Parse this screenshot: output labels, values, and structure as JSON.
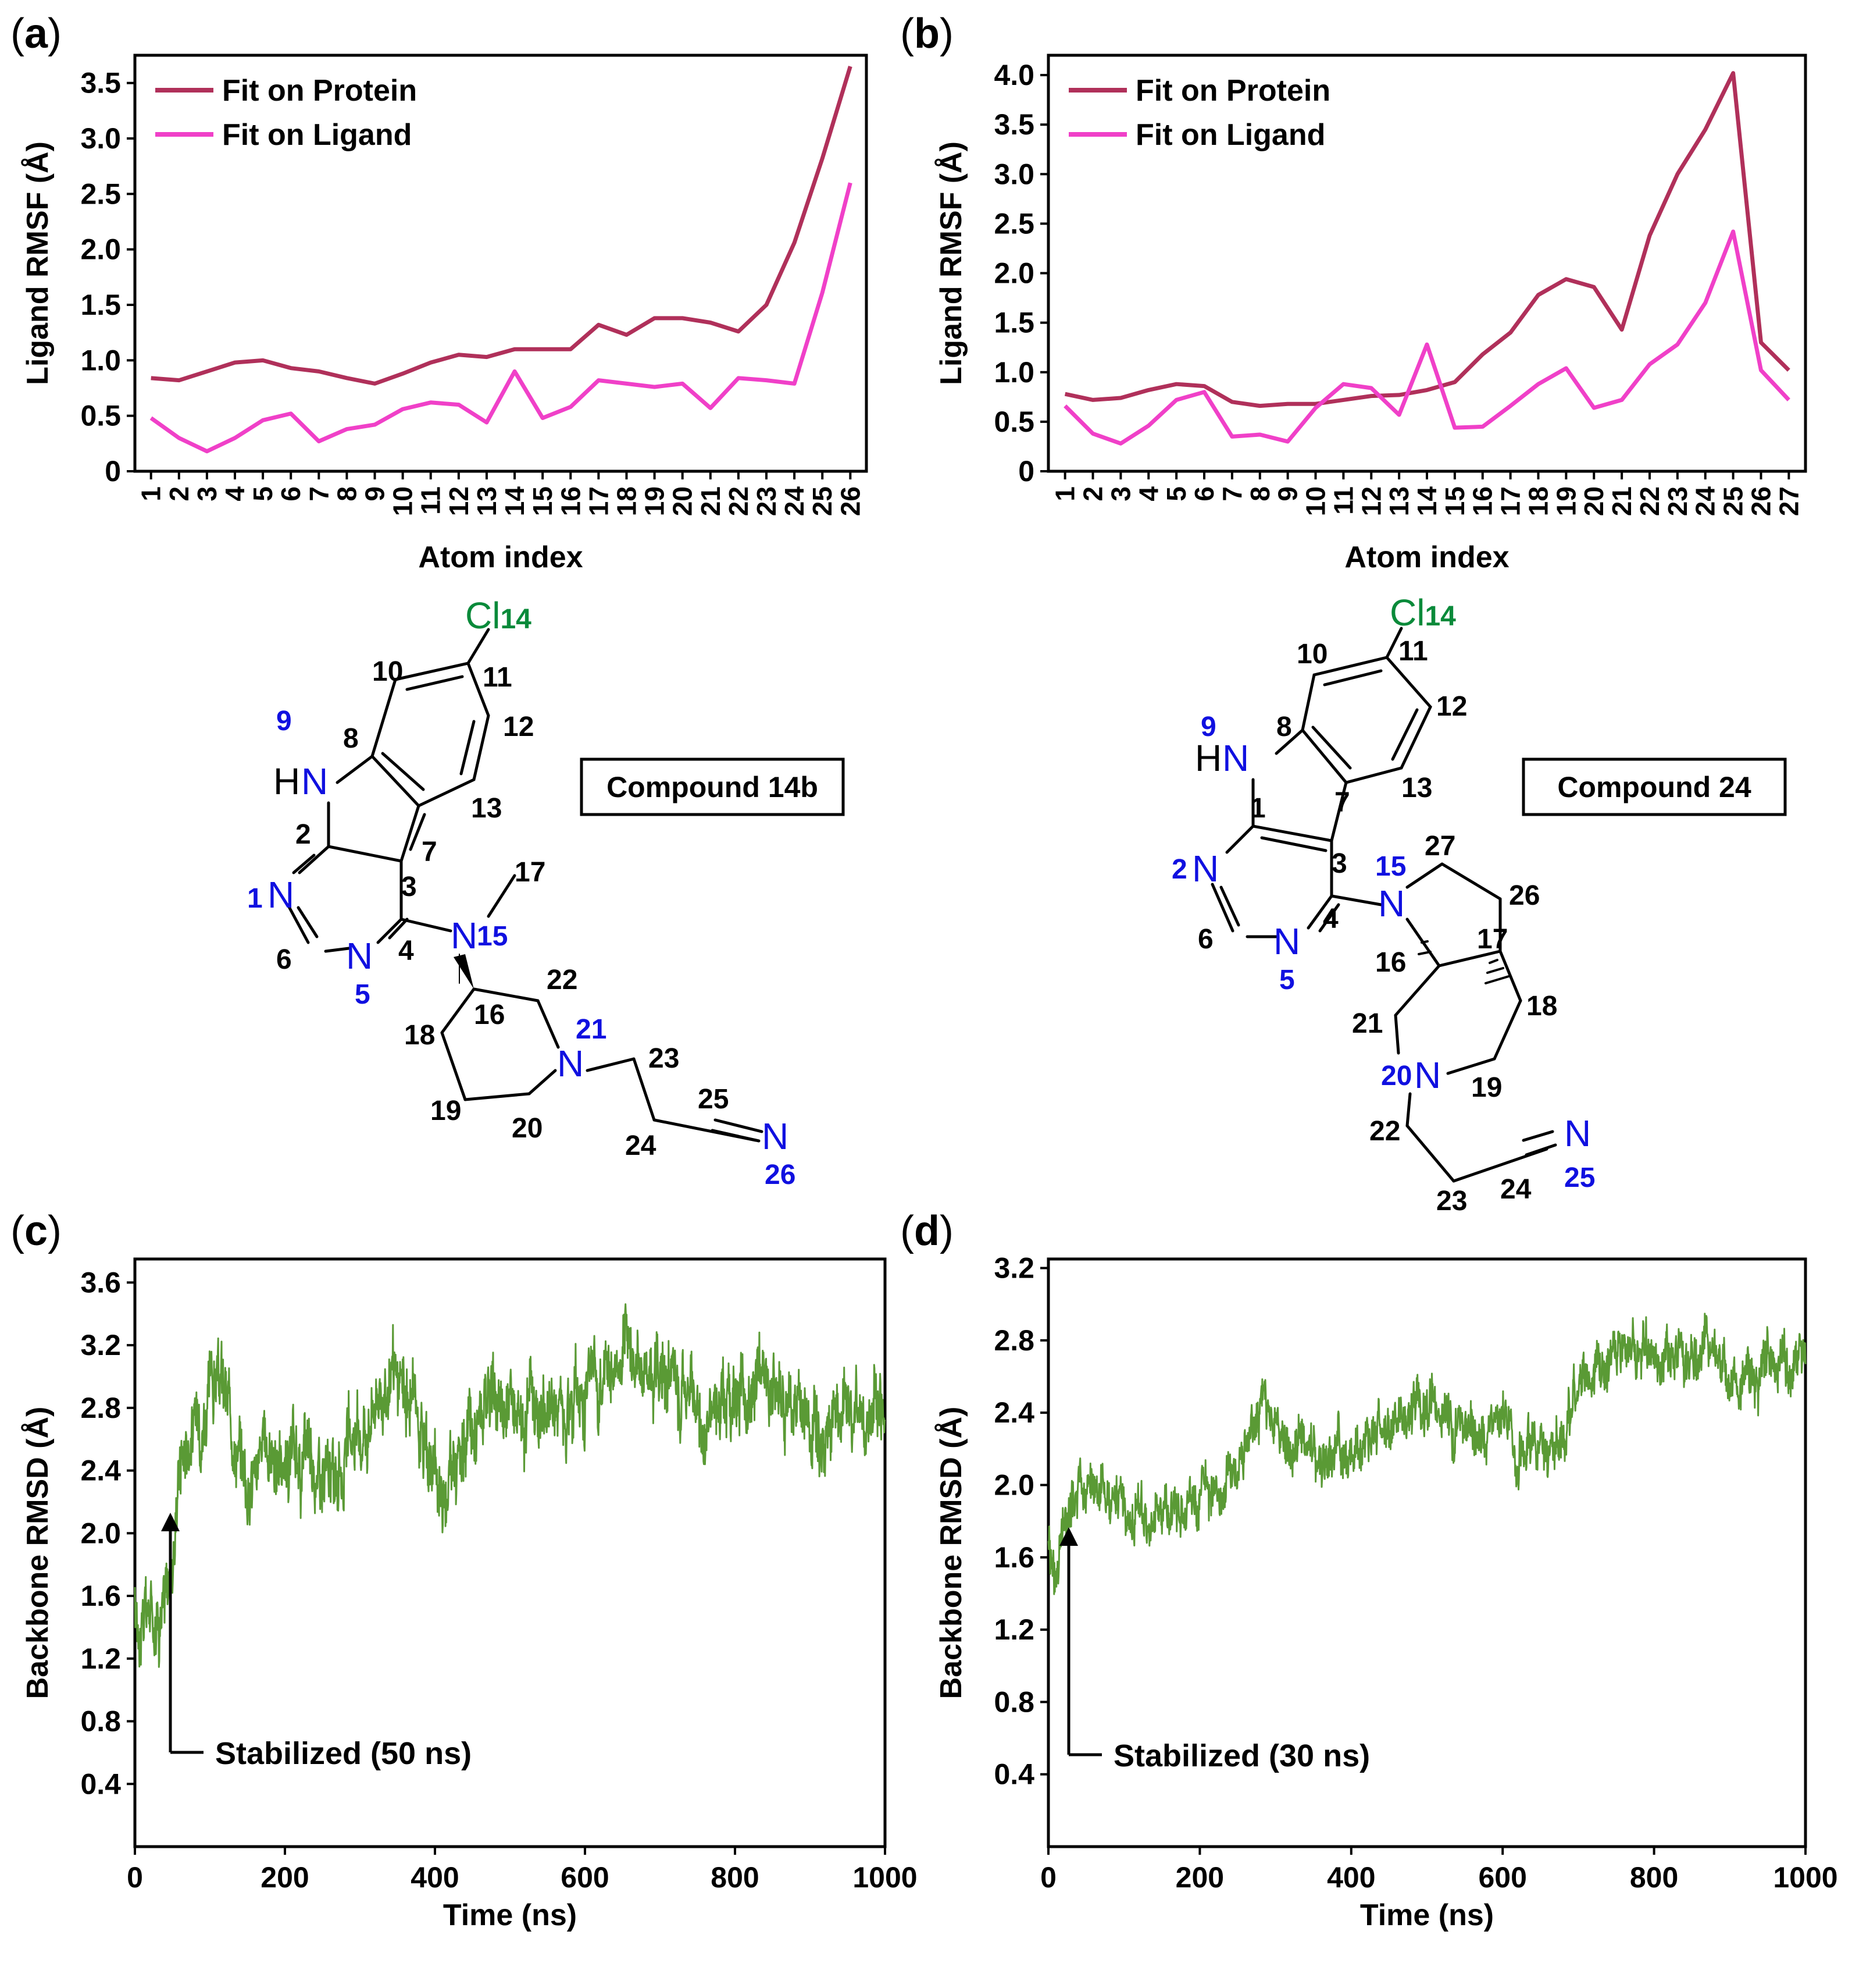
{
  "colors": {
    "protein": "#b0305a",
    "ligand": "#f040c8",
    "rmsd": "#5a9a35",
    "blue": "#1010e0",
    "green": "#0a8a3a",
    "black": "#000000"
  },
  "panels": {
    "a": {
      "label": "(a)",
      "letter": "a"
    },
    "b": {
      "label": "(b)",
      "letter": "b"
    },
    "c": {
      "label": "(c)",
      "letter": "c"
    },
    "d": {
      "label": "(d)",
      "letter": "d"
    }
  },
  "compounds": {
    "a": {
      "name": "Compound 14b"
    },
    "b": {
      "name": "Compound 24"
    }
  },
  "annotations": {
    "c": "Stabilized (50 ns)",
    "d": "Stabilized (30 ns)"
  },
  "chart_data": [
    {
      "id": "a",
      "type": "line",
      "xlabel": "Atom index",
      "ylabel": "Ligand RMSF (Å)",
      "ylim": [
        0,
        3.75
      ],
      "yticks": [
        "0",
        "0.5",
        "1.0",
        "1.5",
        "2.0",
        "2.5",
        "3.0",
        "3.5"
      ],
      "categories": [
        "1",
        "2",
        "3",
        "4",
        "5",
        "6",
        "7",
        "8",
        "9",
        "10",
        "11",
        "12",
        "13",
        "14",
        "15",
        "16",
        "17",
        "18",
        "19",
        "20",
        "21",
        "22",
        "23",
        "24",
        "25",
        "26"
      ],
      "highlight_blue": [
        "1",
        "5",
        "9",
        "15",
        "21",
        "26"
      ],
      "highlight_green": [
        "14"
      ],
      "legend": "top-left",
      "series": [
        {
          "name": "Fit on Protein",
          "values": [
            0.84,
            0.82,
            0.9,
            0.98,
            1.0,
            0.93,
            0.9,
            0.84,
            0.79,
            0.88,
            0.98,
            1.05,
            1.03,
            1.1,
            1.1,
            1.1,
            1.32,
            1.23,
            1.38,
            1.38,
            1.34,
            1.26,
            1.5,
            2.06,
            2.82,
            3.65
          ]
        },
        {
          "name": "Fit on Ligand",
          "values": [
            0.48,
            0.3,
            0.18,
            0.3,
            0.46,
            0.52,
            0.27,
            0.38,
            0.42,
            0.56,
            0.62,
            0.6,
            0.44,
            0.9,
            0.48,
            0.58,
            0.82,
            0.79,
            0.76,
            0.79,
            0.57,
            0.84,
            0.82,
            0.79,
            1.61,
            2.6
          ]
        }
      ]
    },
    {
      "id": "b",
      "type": "line",
      "xlabel": "Atom index",
      "ylabel": "Ligand RMSF (Å)",
      "ylim": [
        0,
        4.2
      ],
      "yticks": [
        "0",
        "0.5",
        "1.0",
        "1.5",
        "2.0",
        "2.5",
        "3.0",
        "3.5",
        "4.0"
      ],
      "categories": [
        "1",
        "2",
        "3",
        "4",
        "5",
        "6",
        "7",
        "8",
        "9",
        "10",
        "11",
        "12",
        "13",
        "14",
        "15",
        "16",
        "17",
        "18",
        "19",
        "20",
        "21",
        "22",
        "23",
        "24",
        "25",
        "26",
        "27"
      ],
      "highlight_blue": [
        "2",
        "5",
        "9",
        "15",
        "20",
        "25"
      ],
      "highlight_green": [
        "14"
      ],
      "legend": "top-left",
      "series": [
        {
          "name": "Fit on Protein",
          "values": [
            0.78,
            0.72,
            0.74,
            0.82,
            0.88,
            0.86,
            0.7,
            0.66,
            0.68,
            0.68,
            0.72,
            0.76,
            0.77,
            0.82,
            0.9,
            1.18,
            1.4,
            1.78,
            1.94,
            1.86,
            1.43,
            2.38,
            3.0,
            3.45,
            4.02,
            1.3,
            1.02
          ]
        },
        {
          "name": "Fit on Ligand",
          "values": [
            0.66,
            0.38,
            0.28,
            0.46,
            0.72,
            0.8,
            0.35,
            0.37,
            0.3,
            0.64,
            0.88,
            0.84,
            0.57,
            1.28,
            0.44,
            0.45,
            0.66,
            0.88,
            1.04,
            0.64,
            0.72,
            1.08,
            1.28,
            1.7,
            2.42,
            1.02,
            0.72
          ]
        }
      ]
    },
    {
      "id": "c",
      "type": "line",
      "xlabel": "Time (ns)",
      "ylabel": "Backbone RMSD (Å)",
      "xlim": [
        0,
        1000
      ],
      "ylim": [
        0,
        3.75
      ],
      "xticks": [
        "0",
        "200",
        "400",
        "600",
        "800",
        "1000"
      ],
      "yticks": [
        "0.4",
        "0.8",
        "1.2",
        "1.6",
        "2.0",
        "2.4",
        "2.8",
        "3.2",
        "3.6"
      ],
      "stabilized_ns": 50,
      "series": [
        {
          "name": "Backbone RMSD",
          "x": [
            0,
            20,
            40,
            50,
            60,
            80,
            100,
            110,
            130,
            150,
            180,
            200,
            230,
            260,
            300,
            330,
            350,
            380,
            400,
            410,
            430,
            460,
            500,
            550,
            600,
            640,
            660,
            700,
            730,
            760,
            800,
            840,
            880,
            920,
            960,
            1000
          ],
          "values": [
            1.45,
            1.5,
            1.55,
            1.8,
            2.55,
            2.7,
            2.9,
            3.0,
            2.7,
            2.35,
            2.55,
            2.4,
            2.45,
            2.3,
            2.65,
            2.95,
            2.9,
            2.75,
            2.35,
            2.3,
            2.5,
            2.7,
            2.85,
            2.8,
            2.95,
            3.05,
            3.15,
            3.0,
            2.85,
            2.75,
            2.9,
            2.95,
            2.8,
            2.7,
            2.75,
            2.85
          ],
          "noise": 0.22
        }
      ]
    },
    {
      "id": "d",
      "type": "line",
      "xlabel": "Time (ns)",
      "ylabel": "Backbone RMSD (Å)",
      "xlim": [
        0,
        1000
      ],
      "ylim": [
        0,
        3.25
      ],
      "xticks": [
        "0",
        "200",
        "400",
        "600",
        "800",
        "1000"
      ],
      "yticks": [
        "0.4",
        "0.8",
        "1.2",
        "1.6",
        "2.0",
        "2.4",
        "2.8",
        "3.2"
      ],
      "stabilized_ns": 30,
      "series": [
        {
          "name": "Backbone RMSD",
          "x": [
            0,
            10,
            20,
            30,
            50,
            80,
            100,
            130,
            160,
            200,
            240,
            270,
            290,
            320,
            360,
            400,
            420,
            460,
            500,
            540,
            580,
            600,
            620,
            650,
            680,
            700,
            740,
            780,
            800,
            840,
            880,
            900,
            920,
            960,
            1000
          ],
          "values": [
            1.6,
            1.5,
            1.7,
            1.85,
            1.95,
            1.98,
            1.88,
            1.82,
            1.85,
            1.95,
            2.05,
            2.3,
            2.35,
            2.25,
            2.2,
            2.15,
            2.3,
            2.35,
            2.4,
            2.3,
            2.3,
            2.45,
            2.2,
            2.15,
            2.25,
            2.6,
            2.7,
            2.75,
            2.75,
            2.7,
            2.75,
            2.55,
            2.6,
            2.65,
            2.68
          ],
          "noise": 0.13
        }
      ]
    }
  ]
}
